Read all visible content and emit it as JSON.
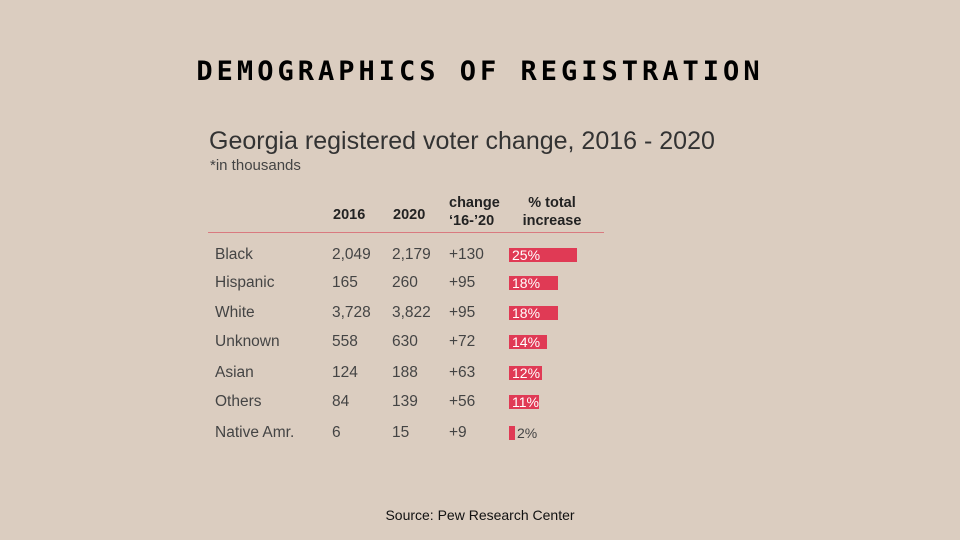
{
  "slide": {
    "title": "DEMOGRAPHICS OF REGISTRATION",
    "source": "Source: Pew Research Center"
  },
  "chart_data": {
    "type": "table",
    "title": "Georgia registered voter change, 2016 - 2020",
    "subtitle": "*in thousands",
    "columns": [
      "",
      "2016",
      "2020",
      "change\n‘16-’20",
      "% total\nincrease"
    ],
    "bar_color": "#e03a55",
    "rows": [
      {
        "group": "Black",
        "v2016": "2,049",
        "v2020": "2,179",
        "change": "+130",
        "pct": 25,
        "pct_label": "25%"
      },
      {
        "group": "Hispanic",
        "v2016": "165",
        "v2020": "260",
        "change": "+95",
        "pct": 18,
        "pct_label": "18%"
      },
      {
        "group": "White",
        "v2016": "3,728",
        "v2020": "3,822",
        "change": "+95",
        "pct": 18,
        "pct_label": "18%"
      },
      {
        "group": "Unknown",
        "v2016": "558",
        "v2020": "630",
        "change": "+72",
        "pct": 14,
        "pct_label": "14%"
      },
      {
        "group": "Asian",
        "v2016": "124",
        "v2020": "188",
        "change": "+63",
        "pct": 12,
        "pct_label": "12%"
      },
      {
        "group": "Others",
        "v2016": "84",
        "v2020": "139",
        "change": "+56",
        "pct": 11,
        "pct_label": "11%"
      },
      {
        "group": "Native Amr.",
        "v2016": "6",
        "v2020": "15",
        "change": "+9",
        "pct": 2,
        "pct_label": "2%"
      }
    ]
  }
}
